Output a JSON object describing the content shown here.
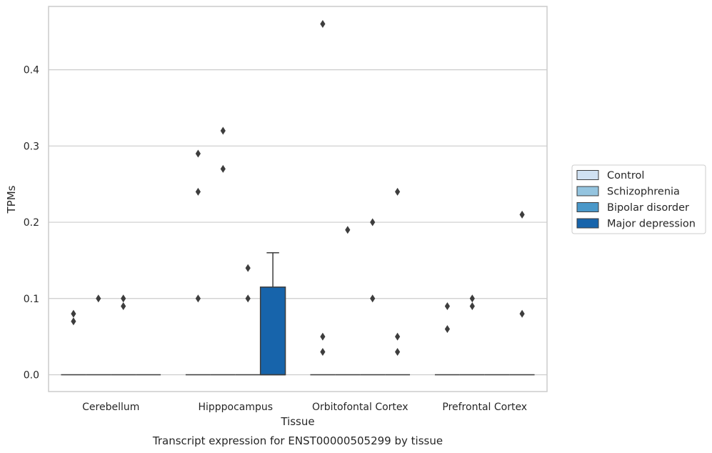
{
  "chart_data": {
    "type": "box",
    "xlabel": "Tissue",
    "ylabel": "TPMs",
    "caption": "Transcript expression for ENST00000505299 by tissue",
    "categories": [
      "Cerebellum",
      "Hipppocampus",
      "Orbitofontal Cortex",
      "Prefrontal Cortex"
    ],
    "ylim": [
      -0.022,
      0.483
    ],
    "yticks": [
      {
        "value": 0.0,
        "label": "0.0"
      },
      {
        "value": 0.1,
        "label": "0.1"
      },
      {
        "value": 0.2,
        "label": "0.2"
      },
      {
        "value": 0.3,
        "label": "0.3"
      },
      {
        "value": 0.4,
        "label": "0.4"
      }
    ],
    "grid": "horizontal",
    "legend_position": "right",
    "series": [
      {
        "name": "Control",
        "color": "#d0e1f2",
        "boxes": [
          {
            "q1": 0,
            "median": 0,
            "q3": 0,
            "whisker_low": 0,
            "whisker_high": 0,
            "outliers": [
              0.08,
              0.07
            ]
          },
          {
            "q1": 0,
            "median": 0,
            "q3": 0,
            "whisker_low": 0,
            "whisker_high": 0,
            "outliers": [
              0.29,
              0.24,
              0.1
            ]
          },
          {
            "q1": 0,
            "median": 0,
            "q3": 0,
            "whisker_low": 0,
            "whisker_high": 0,
            "outliers": [
              0.46,
              0.05,
              0.03
            ]
          },
          {
            "q1": 0,
            "median": 0,
            "q3": 0,
            "whisker_low": 0,
            "whisker_high": 0,
            "outliers": [
              0.09,
              0.06
            ]
          }
        ]
      },
      {
        "name": "Schizophrenia",
        "color": "#94c4df",
        "boxes": [
          {
            "q1": 0,
            "median": 0,
            "q3": 0,
            "whisker_low": 0,
            "whisker_high": 0,
            "outliers": [
              0.1
            ]
          },
          {
            "q1": 0,
            "median": 0,
            "q3": 0,
            "whisker_low": 0,
            "whisker_high": 0,
            "outliers": [
              0.32,
              0.27
            ]
          },
          {
            "q1": 0,
            "median": 0,
            "q3": 0,
            "whisker_low": 0,
            "whisker_high": 0,
            "outliers": [
              0.19
            ]
          },
          {
            "q1": 0,
            "median": 0,
            "q3": 0,
            "whisker_low": 0,
            "whisker_high": 0,
            "outliers": [
              0.1,
              0.09
            ]
          }
        ]
      },
      {
        "name": "Bipolar disorder",
        "color": "#4a98c9",
        "boxes": [
          {
            "q1": 0,
            "median": 0,
            "q3": 0,
            "whisker_low": 0,
            "whisker_high": 0,
            "outliers": [
              0.1,
              0.09
            ]
          },
          {
            "q1": 0,
            "median": 0,
            "q3": 0,
            "whisker_low": 0,
            "whisker_high": 0,
            "outliers": [
              0.14,
              0.1
            ]
          },
          {
            "q1": 0,
            "median": 0,
            "q3": 0,
            "whisker_low": 0,
            "whisker_high": 0,
            "outliers": [
              0.2,
              0.1
            ]
          },
          {
            "q1": 0,
            "median": 0,
            "q3": 0,
            "whisker_low": 0,
            "whisker_high": 0,
            "outliers": []
          }
        ]
      },
      {
        "name": "Major depression",
        "color": "#1764ab",
        "boxes": [
          {
            "q1": 0,
            "median": 0,
            "q3": 0,
            "whisker_low": 0,
            "whisker_high": 0,
            "outliers": []
          },
          {
            "q1": 0,
            "median": 0,
            "q3": 0.115,
            "whisker_low": 0,
            "whisker_high": 0.16,
            "outliers": []
          },
          {
            "q1": 0,
            "median": 0,
            "q3": 0,
            "whisker_low": 0,
            "whisker_high": 0,
            "outliers": [
              0.24,
              0.05,
              0.03
            ]
          },
          {
            "q1": 0,
            "median": 0,
            "q3": 0,
            "whisker_low": 0,
            "whisker_high": 0,
            "outliers": [
              0.21,
              0.08
            ]
          }
        ]
      }
    ]
  }
}
